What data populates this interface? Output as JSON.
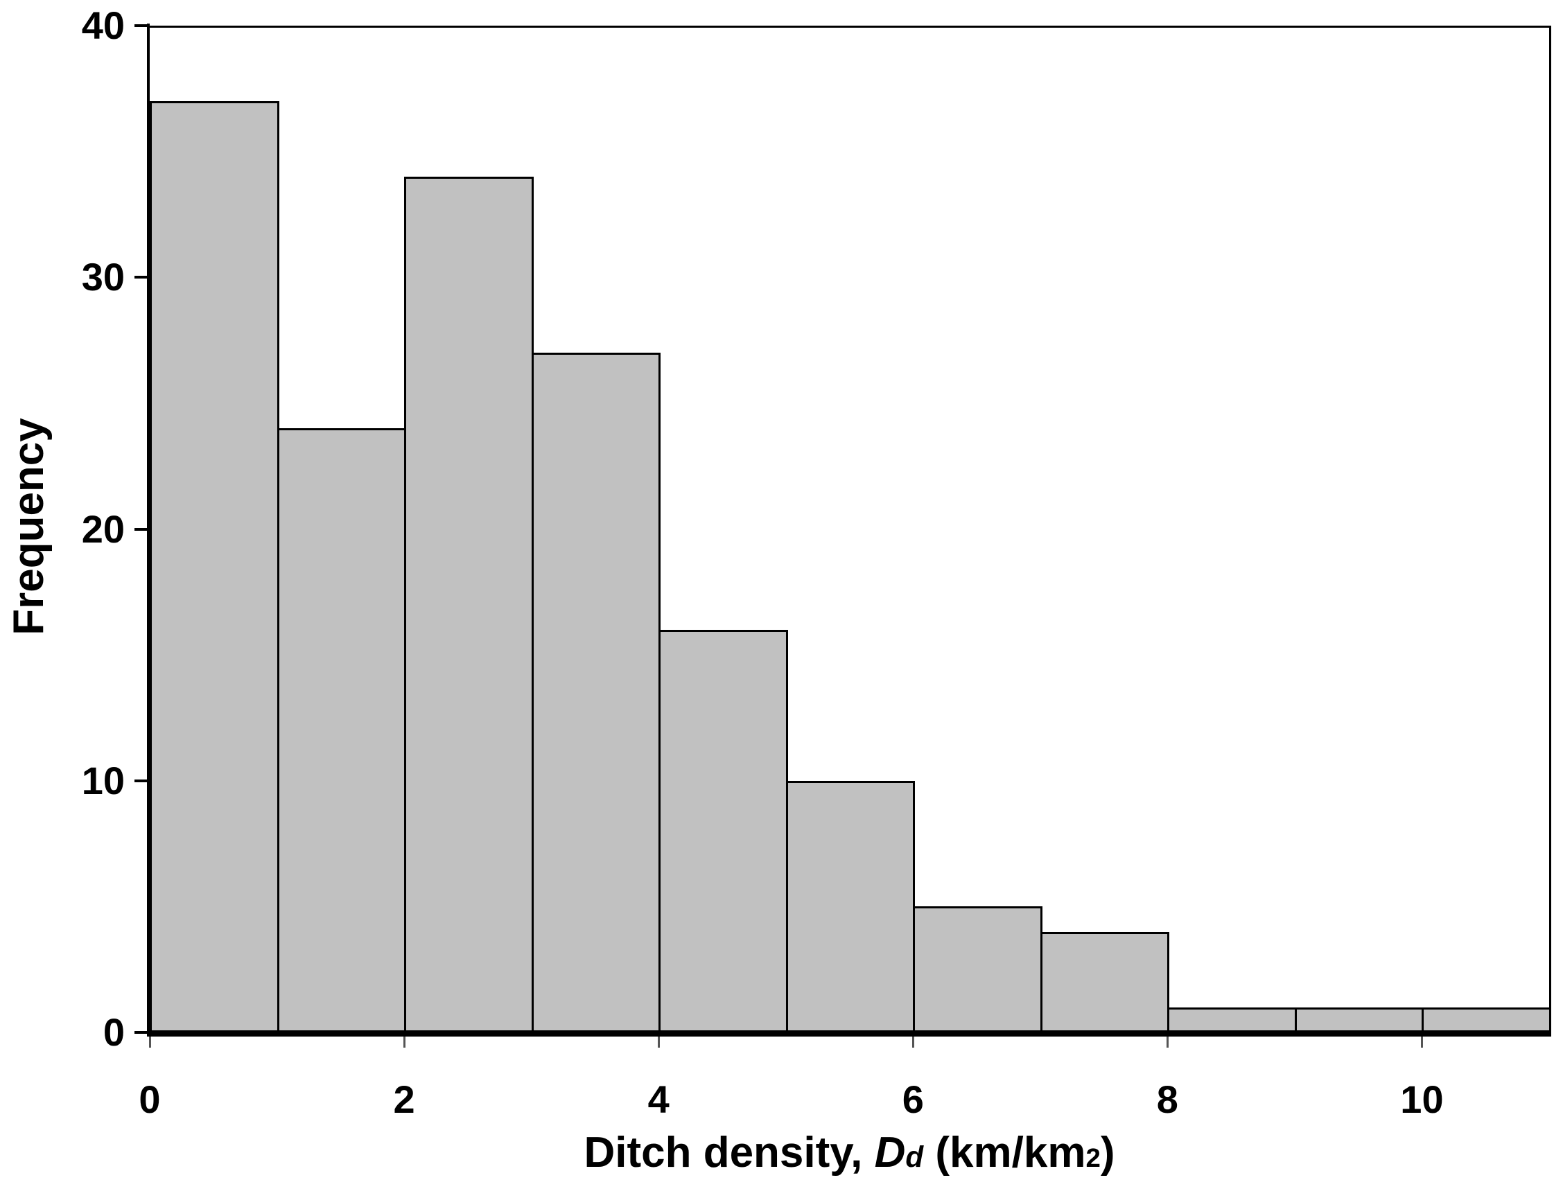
{
  "chart_data": {
    "type": "bar",
    "title": "",
    "ylabel": "Frequency",
    "xlabel_parts": {
      "prefix": "Ditch density, ",
      "variable": "D",
      "subscript": "d",
      "mid": " (km/km",
      "superscript": "2",
      "suffix": ")"
    },
    "bin_edges": [
      0,
      1,
      2,
      3,
      4,
      5,
      6,
      7,
      8,
      9,
      10,
      11
    ],
    "values": [
      37,
      24,
      34,
      27,
      16,
      10,
      5,
      4,
      1,
      1,
      1
    ],
    "x_tick_values": [
      0,
      2,
      4,
      6,
      8,
      10
    ],
    "x_tick_labels": [
      "0",
      "2",
      "4",
      "6",
      "8",
      "10"
    ],
    "y_tick_values": [
      0,
      10,
      20,
      30,
      40
    ],
    "y_tick_labels": [
      "0",
      "10",
      "20",
      "30",
      "40"
    ],
    "xlim": [
      0,
      11
    ],
    "ylim": [
      0,
      40
    ],
    "grid": false,
    "legend": false,
    "bar_fill": "#c1c1c1",
    "bar_stroke": "#000000",
    "axis_color": "#000000",
    "background": "#ffffff"
  }
}
